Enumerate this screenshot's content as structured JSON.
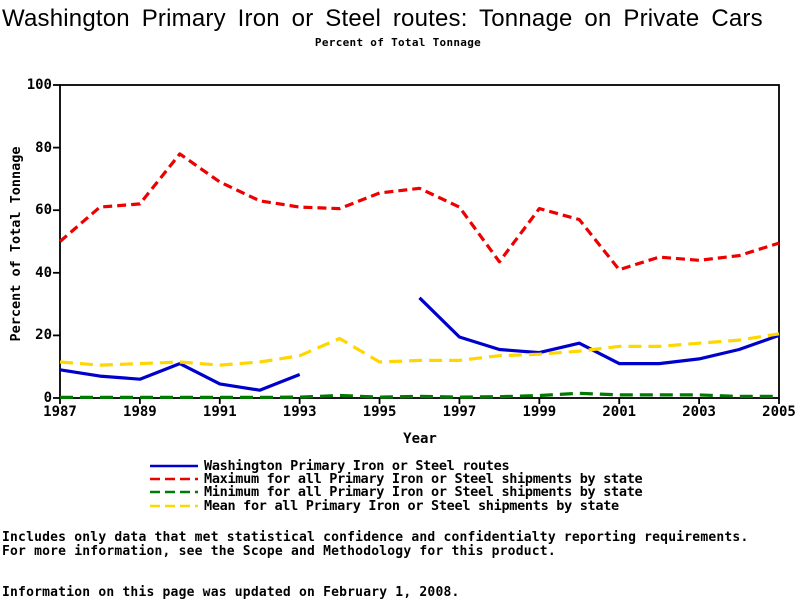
{
  "page": {
    "title": "Washington Primary Iron or Steel routes: Tonnage on Private Cars",
    "subtitle": "Percent of Total Tonnage",
    "footnote_line1": "Includes only data that met statistical confidence and confidentialty reporting requirements.",
    "footnote_line2": "For more information, see the Scope and Methodology for this product.",
    "updated_line": "Information on this page was updated on February 1, 2008."
  },
  "chart_data": {
    "type": "line",
    "title": "Washington Primary Iron or Steel routes: Tonnage on Private Cars",
    "subtitle": "Percent of Total Tonnage",
    "xlabel": "Year",
    "ylabel": "Percent of Total Tonnage",
    "ylim": [
      0,
      100
    ],
    "y_ticks": [
      0,
      20,
      40,
      60,
      80,
      100
    ],
    "x_ticks": [
      1987,
      1989,
      1991,
      1993,
      1995,
      1997,
      1999,
      2001,
      2003,
      2005
    ],
    "grid": false,
    "legend_position": "bottom",
    "categories": [
      1987,
      1988,
      1989,
      1990,
      1991,
      1992,
      1993,
      1994,
      1995,
      1996,
      1997,
      1998,
      1999,
      2000,
      2001,
      2002,
      2003,
      2004,
      2005
    ],
    "series": [
      {
        "name": "Washington Primary Iron or Steel routes",
        "color": "#0000CC",
        "style": "solid",
        "values": [
          9,
          7,
          6,
          11,
          4.5,
          2.5,
          7.5,
          null,
          null,
          32,
          19.5,
          15.5,
          14.5,
          17.5,
          11,
          11,
          12.5,
          15.5,
          20
        ]
      },
      {
        "name": "Maximum for all Primary Iron or Steel shipments by state",
        "color": "#EE0000",
        "style": "dashed",
        "values": [
          50,
          61,
          62,
          78,
          69,
          63,
          61,
          60.5,
          65.5,
          67,
          61,
          43.5,
          60.5,
          57,
          41,
          45,
          44,
          45.5,
          49.5
        ]
      },
      {
        "name": "Minimum for all Primary Iron or Steel shipments by state",
        "color": "#007A00",
        "style": "dashed",
        "values": [
          0.2,
          0.2,
          0.2,
          0.2,
          0.2,
          0.2,
          0.3,
          0.8,
          0.3,
          0.5,
          0.3,
          0.4,
          0.8,
          1.5,
          1,
          1,
          1,
          0.5,
          0.5
        ]
      },
      {
        "name": "Mean for all Primary Iron or Steel shipments by state",
        "color": "#FFD700",
        "style": "dashed",
        "values": [
          11.5,
          10.5,
          11,
          11.5,
          10.5,
          11.5,
          13.5,
          19,
          11.5,
          12,
          12,
          13.5,
          14,
          15,
          16.5,
          16.5,
          17.5,
          18.5,
          20.5
        ]
      }
    ]
  }
}
